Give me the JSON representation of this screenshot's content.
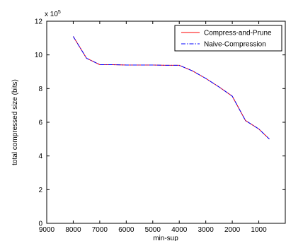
{
  "chart_data": {
    "type": "line",
    "title": "",
    "xlabel": "min-sup",
    "ylabel": "total compressed size (bits)",
    "y_multiplier_label": "x 10",
    "y_multiplier_exponent": "5",
    "xlim": [
      9000,
      0
    ],
    "ylim": [
      0,
      12
    ],
    "x_reversed": true,
    "x_ticks": [
      9000,
      8000,
      7000,
      6000,
      5000,
      4000,
      3000,
      2000,
      1000
    ],
    "x_tick_labels": [
      "9000",
      "8000",
      "7000",
      "6000",
      "5000",
      "4000",
      "3000",
      "2000",
      "1000"
    ],
    "y_ticks": [
      0,
      2,
      4,
      6,
      8,
      10,
      12
    ],
    "y_tick_labels": [
      "0",
      "2",
      "4",
      "6",
      "8",
      "10",
      "12"
    ],
    "grid": false,
    "legend_position": "top-right",
    "series": [
      {
        "name": "Compress-and-Prune",
        "color": "#ff0000",
        "style": "solid",
        "x": [
          8000,
          7500,
          7000,
          6500,
          6000,
          5500,
          5000,
          4500,
          4000,
          3500,
          3000,
          2500,
          2000,
          1500,
          1000,
          600
        ],
        "y": [
          11.1,
          9.8,
          9.42,
          9.42,
          9.4,
          9.4,
          9.4,
          9.38,
          9.38,
          9.05,
          8.6,
          8.1,
          7.55,
          6.1,
          5.6,
          5.0
        ]
      },
      {
        "name": "Naive-Compression",
        "color": "#0000ff",
        "style": "dashdot",
        "x": [
          8000,
          7500,
          7000,
          6500,
          6000,
          5500,
          5000,
          4500,
          4000,
          3500,
          3000,
          2500,
          2000,
          1500,
          1000,
          600
        ],
        "y": [
          11.1,
          9.8,
          9.42,
          9.42,
          9.4,
          9.4,
          9.4,
          9.38,
          9.38,
          9.05,
          8.6,
          8.1,
          7.55,
          6.1,
          5.6,
          5.0
        ]
      }
    ]
  }
}
